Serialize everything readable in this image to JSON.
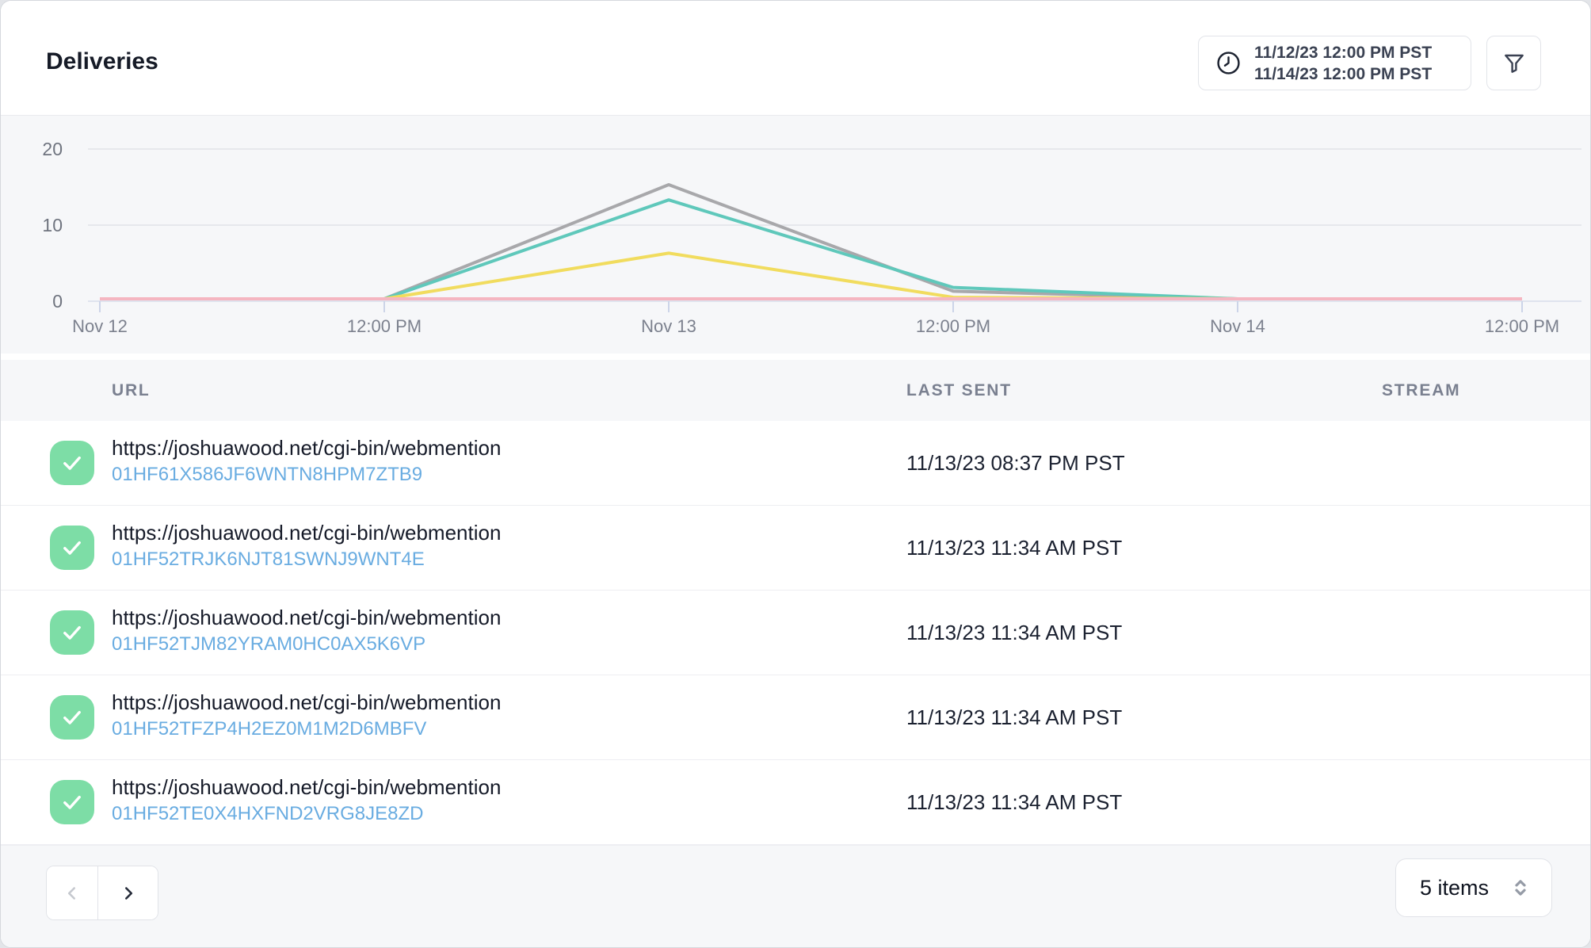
{
  "header": {
    "title": "Deliveries",
    "date_range": {
      "start": "11/12/23 12:00 PM PST",
      "end": "11/14/23 12:00 PM PST"
    }
  },
  "icons": {
    "date_range": "clock-icon",
    "filter": "funnel-icon",
    "row_status": "check-icon",
    "prev": "chevron-left-icon",
    "next": "chevron-right-icon",
    "page_size": "chevron-up-down-icon"
  },
  "chart_data": {
    "type": "line",
    "x_ticks": [
      "Nov 12",
      "12:00 PM",
      "Nov 13",
      "12:00 PM",
      "Nov 14",
      "12:00 PM"
    ],
    "y_ticks": [
      20,
      10,
      0
    ],
    "ylim": [
      0,
      24
    ],
    "grid": true,
    "legend": false,
    "background": "#f6f7f9",
    "series": [
      {
        "name": "gray",
        "color": "#a8a8ab",
        "values": [
          0,
          0,
          15,
          1,
          0,
          0
        ]
      },
      {
        "name": "teal",
        "color": "#5fc8bb",
        "values": [
          0,
          0,
          13,
          1.5,
          0,
          0
        ]
      },
      {
        "name": "yellow",
        "color": "#f1dc5e",
        "values": [
          0,
          0,
          6,
          0.2,
          0,
          0
        ]
      },
      {
        "name": "pink",
        "color": "#f5b6c1",
        "values": [
          0,
          0,
          0,
          0,
          0,
          0
        ]
      }
    ]
  },
  "table": {
    "columns": [
      "URL",
      "LAST SENT",
      "STREAM"
    ],
    "rows": [
      {
        "url": "https://joshuawood.net/cgi-bin/webmention",
        "id": "01HF61X586JF6WNTN8HPM7ZTB9",
        "last_sent": "11/13/23 08:37 PM PST",
        "stream": ""
      },
      {
        "url": "https://joshuawood.net/cgi-bin/webmention",
        "id": "01HF52TRJK6NJT81SWNJ9WNT4E",
        "last_sent": "11/13/23 11:34 AM PST",
        "stream": ""
      },
      {
        "url": "https://joshuawood.net/cgi-bin/webmention",
        "id": "01HF52TJM82YRAM0HC0AX5K6VP",
        "last_sent": "11/13/23 11:34 AM PST",
        "stream": ""
      },
      {
        "url": "https://joshuawood.net/cgi-bin/webmention",
        "id": "01HF52TFZP4H2EZ0M1M2D6MBFV",
        "last_sent": "11/13/23 11:34 AM PST",
        "stream": ""
      },
      {
        "url": "https://joshuawood.net/cgi-bin/webmention",
        "id": "01HF52TE0X4HXFND2VRG8JE8ZD",
        "last_sent": "11/13/23 11:34 AM PST",
        "stream": ""
      }
    ]
  },
  "pagination": {
    "page_size_label": "5 items"
  },
  "colors": {
    "card_bg": "#ffffff",
    "panel_bg": "#f6f7f9",
    "border": "#e2e4e9",
    "gridline": "#e6e8ec",
    "axis_line": "#dfe3ee",
    "text_dark": "#161b27",
    "text_muted": "#7a8090",
    "link_blue": "#69ace1",
    "check_green": "#7ddda6"
  }
}
